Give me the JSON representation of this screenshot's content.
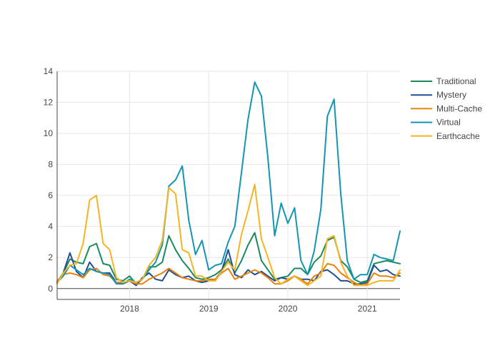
{
  "chart_data": {
    "type": "line",
    "title": "",
    "xlabel": "",
    "ylabel": "",
    "xlim": [
      "2017-02-01",
      "2021-06-01"
    ],
    "ylim": [
      -0.7,
      14
    ],
    "x_ticks": [
      "2018",
      "2019",
      "2020",
      "2021"
    ],
    "y_ticks": [
      0,
      2,
      4,
      6,
      8,
      10,
      12,
      14
    ],
    "grid": true,
    "legend_position": "right",
    "x": [
      "2017-02",
      "2017-03",
      "2017-04",
      "2017-05",
      "2017-06",
      "2017-07",
      "2017-08",
      "2017-09",
      "2017-10",
      "2017-11",
      "2017-12",
      "2018-01",
      "2018-02",
      "2018-03",
      "2018-04",
      "2018-05",
      "2018-06",
      "2018-07",
      "2018-08",
      "2018-09",
      "2018-10",
      "2018-11",
      "2018-12",
      "2019-01",
      "2019-02",
      "2019-03",
      "2019-04",
      "2019-05",
      "2019-06",
      "2019-07",
      "2019-08",
      "2019-09",
      "2019-10",
      "2019-11",
      "2019-12",
      "2020-01",
      "2020-02",
      "2020-03",
      "2020-04",
      "2020-05",
      "2020-06",
      "2020-07",
      "2020-08",
      "2020-09",
      "2020-10",
      "2020-11",
      "2020-12",
      "2021-01",
      "2021-02",
      "2021-03",
      "2021-04",
      "2021-05",
      "2021-06"
    ],
    "series": [
      {
        "name": "Traditional",
        "color": "#1a8a5c",
        "values": [
          0.4,
          1.0,
          1.9,
          1.7,
          1.6,
          2.7,
          2.9,
          1.6,
          1.5,
          0.6,
          0.5,
          0.8,
          0.3,
          0.6,
          1.4,
          1.4,
          1.7,
          3.4,
          2.5,
          1.8,
          1.3,
          0.7,
          0.6,
          0.7,
          0.9,
          1.2,
          1.9,
          1.0,
          1.8,
          2.8,
          3.6,
          1.8,
          1.2,
          0.6,
          0.7,
          0.8,
          1.3,
          1.3,
          0.9,
          1.7,
          2.1,
          3.1,
          3.3,
          1.8,
          1.4,
          0.6,
          0.4,
          0.5,
          1.6,
          1.7,
          1.8,
          1.7,
          1.6
        ]
      },
      {
        "name": "Mystery",
        "color": "#1f4e96",
        "values": [
          0.4,
          1.0,
          2.3,
          1.1,
          0.7,
          1.7,
          1.1,
          1.0,
          1.0,
          0.4,
          0.3,
          0.5,
          0.2,
          0.7,
          1.0,
          0.6,
          0.5,
          1.2,
          0.9,
          0.7,
          0.8,
          0.5,
          0.4,
          0.5,
          0.6,
          1.1,
          2.5,
          0.9,
          0.7,
          1.2,
          0.9,
          1.1,
          0.8,
          0.5,
          0.7,
          0.6,
          0.8,
          0.6,
          0.6,
          0.5,
          1.1,
          1.2,
          0.9,
          0.5,
          0.5,
          0.3,
          0.3,
          0.4,
          1.5,
          1.1,
          1.2,
          0.9,
          0.8
        ]
      },
      {
        "name": "Multi-Cache",
        "color": "#e8820e",
        "values": [
          0.5,
          0.9,
          1.0,
          0.9,
          0.7,
          1.2,
          1.3,
          0.9,
          0.8,
          0.4,
          0.4,
          0.5,
          0.3,
          0.3,
          0.6,
          0.8,
          1.0,
          1.3,
          1.0,
          0.7,
          0.6,
          0.5,
          0.5,
          0.6,
          0.6,
          1.0,
          1.3,
          0.6,
          0.8,
          1.0,
          1.2,
          1.0,
          0.7,
          0.3,
          0.3,
          0.5,
          0.8,
          0.6,
          0.3,
          0.8,
          1.0,
          1.6,
          1.5,
          1.0,
          0.7,
          0.4,
          0.2,
          0.3,
          1.0,
          0.8,
          0.8,
          0.7,
          1.0
        ]
      },
      {
        "name": "Virtual",
        "color": "#1396b4",
        "values": [
          0.4,
          0.8,
          1.5,
          1.2,
          0.9,
          1.3,
          1.1,
          1.0,
          0.9,
          0.3,
          0.3,
          0.6,
          0.4,
          0.6,
          1.2,
          1.7,
          2.8,
          6.6,
          7.0,
          7.9,
          4.4,
          2.2,
          3.1,
          1.2,
          1.5,
          1.6,
          3.0,
          4.0,
          7.5,
          10.9,
          13.3,
          12.4,
          8.4,
          3.4,
          5.5,
          4.2,
          5.2,
          1.8,
          0.9,
          2.4,
          5.1,
          11.1,
          12.2,
          6.1,
          1.8,
          0.6,
          0.9,
          0.9,
          2.2,
          2.0,
          1.9,
          1.8,
          3.7
        ]
      },
      {
        "name": "Earthcache",
        "color": "#f3b522",
        "values": [
          0.3,
          1.0,
          1.5,
          1.6,
          2.9,
          5.7,
          6.0,
          2.9,
          2.5,
          0.7,
          0.4,
          0.5,
          0.4,
          0.6,
          1.5,
          2.0,
          3.1,
          6.5,
          6.1,
          2.5,
          2.3,
          0.8,
          0.8,
          0.5,
          0.5,
          1.1,
          1.7,
          1.2,
          3.5,
          5.0,
          6.7,
          3.2,
          2.0,
          0.7,
          0.3,
          0.6,
          0.8,
          0.5,
          0.2,
          0.5,
          0.8,
          3.2,
          3.4,
          1.7,
          0.8,
          0.2,
          0.2,
          0.2,
          0.4,
          0.5,
          0.5,
          0.5,
          1.2
        ]
      }
    ]
  }
}
